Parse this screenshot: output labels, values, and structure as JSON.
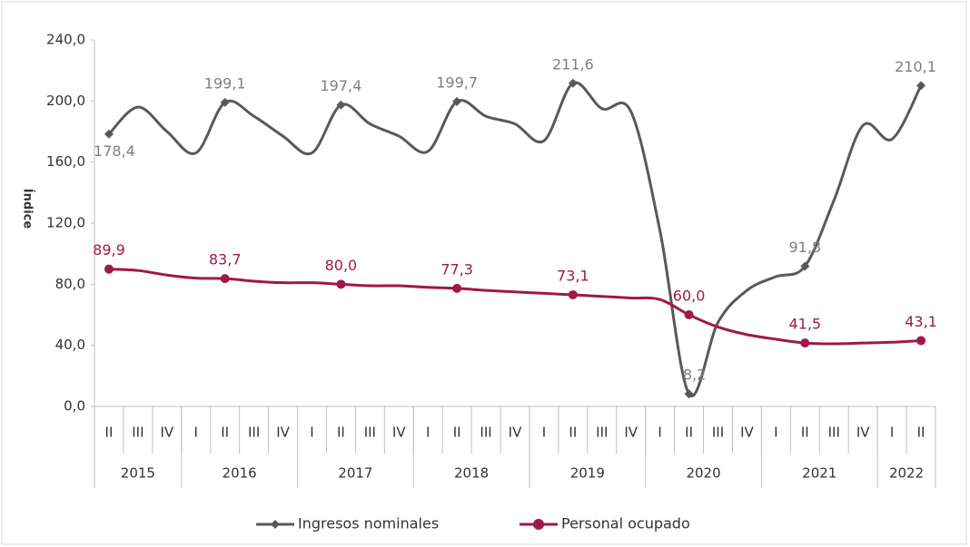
{
  "chart_data": {
    "type": "line",
    "y_label": "Índice",
    "categories": [
      "II",
      "III",
      "IV",
      "I",
      "II",
      "III",
      "IV",
      "I",
      "II",
      "III",
      "IV",
      "I",
      "II",
      "III",
      "IV",
      "I",
      "II",
      "III",
      "IV",
      "I",
      "II",
      "III",
      "IV",
      "I",
      "II",
      "III",
      "IV",
      "I",
      "II"
    ],
    "category_groups": [
      {
        "label": "2015",
        "size": 3
      },
      {
        "label": "2016",
        "size": 4
      },
      {
        "label": "2017",
        "size": 4
      },
      {
        "label": "2018",
        "size": 4
      },
      {
        "label": "2019",
        "size": 4
      },
      {
        "label": "2020",
        "size": 4
      },
      {
        "label": "2021",
        "size": 4
      },
      {
        "label": "2022",
        "size": 2
      }
    ],
    "series": [
      {
        "name": "Ingresos nominales",
        "color": "#595959",
        "values": [
          178.4,
          196,
          180,
          166,
          199.1,
          190,
          177,
          166,
          197.4,
          185,
          177,
          167,
          199.7,
          190,
          185,
          174,
          211.6,
          195,
          193,
          115,
          8.2,
          55,
          76,
          85,
          91.8,
          135,
          184,
          175,
          210.1
        ],
        "value_labels": [
          "178,4",
          null,
          null,
          null,
          "199,1",
          null,
          null,
          null,
          "197,4",
          null,
          null,
          null,
          "199,7",
          null,
          null,
          null,
          "211,6",
          null,
          null,
          null,
          "8,2",
          null,
          null,
          null,
          "91,8",
          null,
          null,
          null,
          "210,1"
        ]
      },
      {
        "name": "Personal ocupado",
        "color": "#a0174b",
        "values": [
          89.9,
          89,
          86,
          84,
          83.7,
          82,
          81,
          81,
          80.0,
          79,
          79,
          78,
          77.3,
          76,
          75,
          74,
          73.1,
          72,
          71,
          70,
          60.0,
          52,
          47,
          44,
          41.5,
          41,
          41.5,
          42,
          43.1
        ],
        "value_labels": [
          "89,9",
          null,
          null,
          null,
          "83,7",
          null,
          null,
          null,
          "80,0",
          null,
          null,
          null,
          "77,3",
          null,
          null,
          null,
          "73,1",
          null,
          null,
          null,
          "60,0",
          null,
          null,
          null,
          "41,5",
          null,
          null,
          null,
          "43,1"
        ]
      }
    ],
    "ylim": [
      0,
      240
    ],
    "yticks": [
      {
        "value": 0,
        "label": "0,0"
      },
      {
        "value": 40,
        "label": "40,0"
      },
      {
        "value": 80,
        "label": "80,0"
      },
      {
        "value": 120,
        "label": "120,0"
      },
      {
        "value": 160,
        "label": "160,0"
      },
      {
        "value": 200,
        "label": "200,0"
      },
      {
        "value": 240,
        "label": "240,0"
      }
    ],
    "grid": false
  }
}
